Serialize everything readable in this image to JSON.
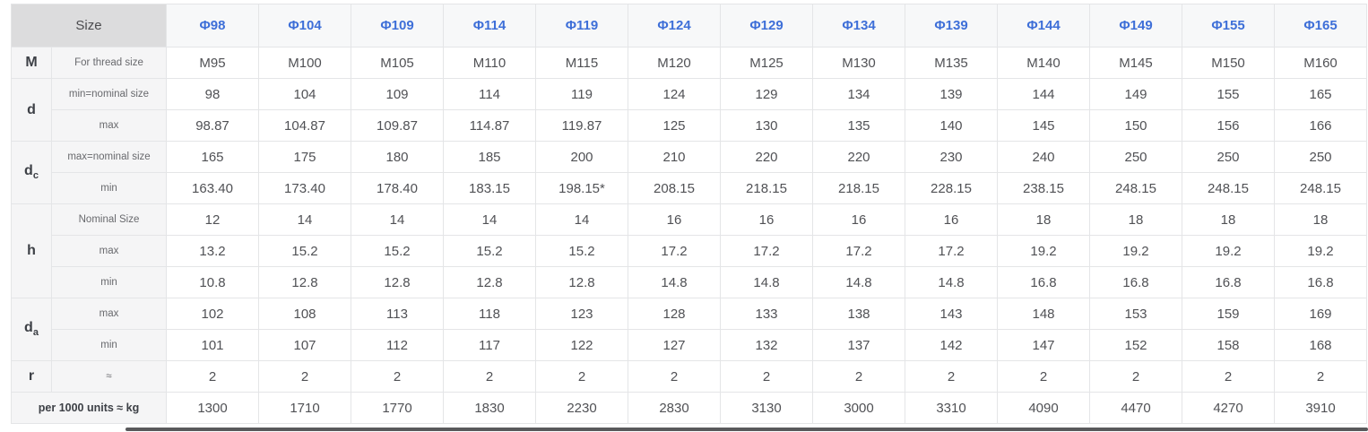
{
  "colors": {
    "header_text": "#3e6fd8",
    "corner_bg": "#dcdcdd",
    "label_bg": "#f5f5f6",
    "header_bg": "#f7f8f9",
    "border": "#e4e5e7"
  },
  "table": {
    "corner_label": "Size",
    "columns": [
      "Φ98",
      "Φ104",
      "Φ109",
      "Φ114",
      "Φ119",
      "Φ124",
      "Φ129",
      "Φ134",
      "Φ139",
      "Φ144",
      "Φ149",
      "Φ155",
      "Φ165"
    ],
    "row_groups": [
      {
        "label": "M",
        "label_sub": "",
        "rows": [
          {
            "sublabel": "For thread size",
            "values": [
              "M95",
              "M100",
              "M105",
              "M110",
              "M115",
              "M120",
              "M125",
              "M130",
              "M135",
              "M140",
              "M145",
              "M150",
              "M160"
            ]
          }
        ]
      },
      {
        "label": "d",
        "label_sub": "",
        "rows": [
          {
            "sublabel": "min=nominal size",
            "values": [
              "98",
              "104",
              "109",
              "114",
              "119",
              "124",
              "129",
              "134",
              "139",
              "144",
              "149",
              "155",
              "165"
            ]
          },
          {
            "sublabel": "max",
            "values": [
              "98.87",
              "104.87",
              "109.87",
              "114.87",
              "119.87",
              "125",
              "130",
              "135",
              "140",
              "145",
              "150",
              "156",
              "166"
            ]
          }
        ]
      },
      {
        "label": "d",
        "label_sub": "c",
        "rows": [
          {
            "sublabel": "max=nominal size",
            "values": [
              "165",
              "175",
              "180",
              "185",
              "200",
              "210",
              "220",
              "220",
              "230",
              "240",
              "250",
              "250",
              "250"
            ]
          },
          {
            "sublabel": "min",
            "values": [
              "163.40",
              "173.40",
              "178.40",
              "183.15",
              "198.15*",
              "208.15",
              "218.15",
              "218.15",
              "228.15",
              "238.15",
              "248.15",
              "248.15",
              "248.15"
            ]
          }
        ]
      },
      {
        "label": "h",
        "label_sub": "",
        "rows": [
          {
            "sublabel": "Nominal Size",
            "values": [
              "12",
              "14",
              "14",
              "14",
              "14",
              "16",
              "16",
              "16",
              "16",
              "18",
              "18",
              "18",
              "18"
            ]
          },
          {
            "sublabel": "max",
            "values": [
              "13.2",
              "15.2",
              "15.2",
              "15.2",
              "15.2",
              "17.2",
              "17.2",
              "17.2",
              "17.2",
              "19.2",
              "19.2",
              "19.2",
              "19.2"
            ]
          },
          {
            "sublabel": "min",
            "values": [
              "10.8",
              "12.8",
              "12.8",
              "12.8",
              "12.8",
              "14.8",
              "14.8",
              "14.8",
              "14.8",
              "16.8",
              "16.8",
              "16.8",
              "16.8"
            ]
          }
        ]
      },
      {
        "label": "d",
        "label_sub": "a",
        "rows": [
          {
            "sublabel": "max",
            "values": [
              "102",
              "108",
              "113",
              "118",
              "123",
              "128",
              "133",
              "138",
              "143",
              "148",
              "153",
              "159",
              "169"
            ]
          },
          {
            "sublabel": "min",
            "values": [
              "101",
              "107",
              "112",
              "117",
              "122",
              "127",
              "132",
              "137",
              "142",
              "147",
              "152",
              "158",
              "168"
            ]
          }
        ]
      },
      {
        "label": "r",
        "label_sub": "",
        "rows": [
          {
            "sublabel": "≈",
            "values": [
              "2",
              "2",
              "2",
              "2",
              "2",
              "2",
              "2",
              "2",
              "2",
              "2",
              "2",
              "2",
              "2"
            ]
          }
        ]
      }
    ],
    "footer_row": {
      "label": "per 1000 units ≈ kg",
      "values": [
        "1300",
        "1710",
        "1770",
        "1830",
        "2230",
        "2830",
        "3130",
        "3000",
        "3310",
        "4090",
        "4470",
        "4270",
        "3910"
      ]
    }
  }
}
